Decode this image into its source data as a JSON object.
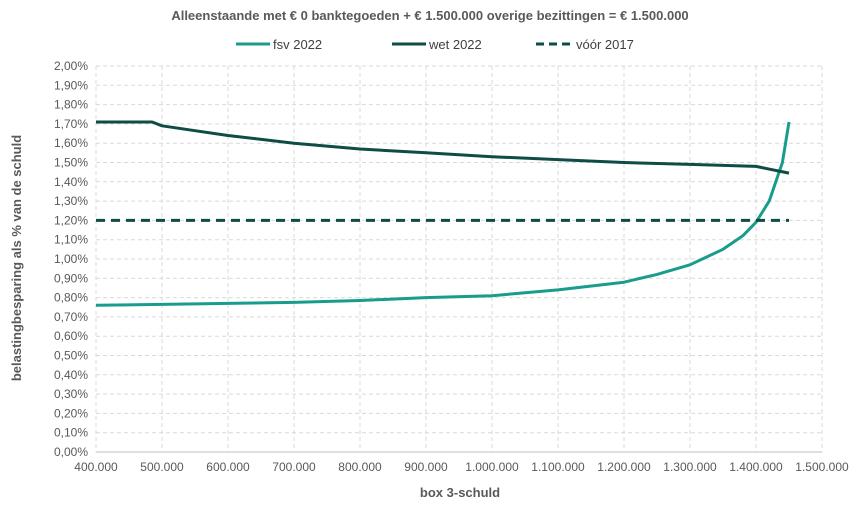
{
  "chart_data": {
    "type": "line",
    "title": "Alleenstaande met € 0 banktegoeden + € 1.500.000 overige bezittingen = € 1.500.000",
    "xlabel": "box 3-schuld",
    "ylabel": "belastingbesparing als % van de schuld",
    "xlim": [
      400000,
      1500000
    ],
    "ylim": [
      0,
      0.02
    ],
    "x_ticks": [
      "400.000",
      "500.000",
      "600.000",
      "700.000",
      "800.000",
      "900.000",
      "1.000.000",
      "1.100.000",
      "1.200.000",
      "1.300.000",
      "1.400.000",
      "1.500.000"
    ],
    "y_ticks": [
      "0,00%",
      "0,10%",
      "0,20%",
      "0,30%",
      "0,40%",
      "0,50%",
      "0,60%",
      "0,70%",
      "0,80%",
      "0,90%",
      "1,00%",
      "1,10%",
      "1,20%",
      "1,30%",
      "1,40%",
      "1,50%",
      "1,60%",
      "1,70%",
      "1,80%",
      "1,90%",
      "2,00%"
    ],
    "grid": true,
    "legend_position": "top",
    "series": [
      {
        "name": "fsv 2022",
        "color": "#1a9c8c",
        "style": "solid",
        "x": [
          400000,
          500000,
          600000,
          700000,
          800000,
          900000,
          1000000,
          1100000,
          1200000,
          1250000,
          1300000,
          1350000,
          1380000,
          1400000,
          1420000,
          1440000,
          1450000
        ],
        "y": [
          0.0076,
          0.00765,
          0.0077,
          0.00775,
          0.00785,
          0.008,
          0.0081,
          0.0084,
          0.0088,
          0.0092,
          0.0097,
          0.0105,
          0.0112,
          0.0119,
          0.013,
          0.015,
          0.0171
        ]
      },
      {
        "name": "wet 2022",
        "color": "#0d4d45",
        "style": "solid",
        "x": [
          400000,
          485000,
          500000,
          550000,
          600000,
          700000,
          800000,
          900000,
          1000000,
          1100000,
          1200000,
          1300000,
          1400000,
          1450000
        ],
        "y": [
          0.0171,
          0.0171,
          0.0169,
          0.01665,
          0.0164,
          0.016,
          0.0157,
          0.0155,
          0.0153,
          0.01515,
          0.015,
          0.0149,
          0.0148,
          0.01445
        ]
      },
      {
        "name": "vóór 2017",
        "color": "#0d4d45",
        "style": "dashed",
        "x": [
          400000,
          1450000
        ],
        "y": [
          0.012,
          0.012
        ]
      }
    ]
  }
}
